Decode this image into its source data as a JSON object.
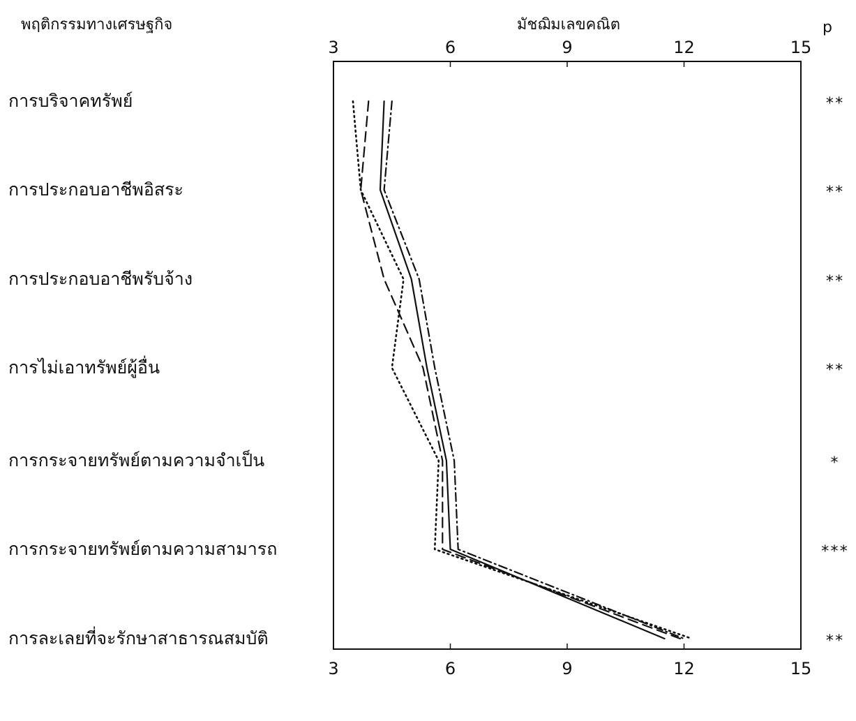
{
  "chart_data": {
    "type": "line",
    "row_header": "พฤติกรรมทางเศรษฐกิจ",
    "axis_title": "มัชฌิมเลขคณิต",
    "sig_header": "p",
    "orientation": "horizontal-profile",
    "xlim": [
      3,
      15
    ],
    "x_ticks": [
      3,
      6,
      9,
      12,
      15
    ],
    "x_tick_labels": [
      "3",
      "6",
      "9",
      "12",
      "15"
    ],
    "categories": [
      "การบริจาคทรัพย์",
      "การประกอบอาชีพอิสระ",
      "การประกอบอาชีพรับจ้าง",
      "การไม่เอาทรัพย์ผู้อื่น",
      "การกระจายทรัพย์ตามความจำเป็น",
      "การกระจายทรัพย์ตามความสามารถ",
      "การละเลยที่จะรักษาสาธารณสมบัติ"
    ],
    "significance": [
      "**",
      "**",
      "**",
      "**",
      "*",
      "***",
      "**"
    ],
    "series": [
      {
        "style": "solid",
        "values": [
          4.3,
          4.2,
          5.0,
          5.4,
          5.9,
          6.0,
          11.5
        ]
      },
      {
        "style": "dashed",
        "values": [
          3.9,
          3.7,
          4.3,
          5.3,
          5.8,
          5.8,
          11.9
        ]
      },
      {
        "style": "dotted",
        "values": [
          3.5,
          3.7,
          4.8,
          4.5,
          5.7,
          5.6,
          12.2
        ]
      },
      {
        "style": "dash-dot",
        "values": [
          4.5,
          4.3,
          5.2,
          5.6,
          6.1,
          6.2,
          12.0
        ]
      }
    ],
    "grid": false,
    "legend": "none"
  }
}
